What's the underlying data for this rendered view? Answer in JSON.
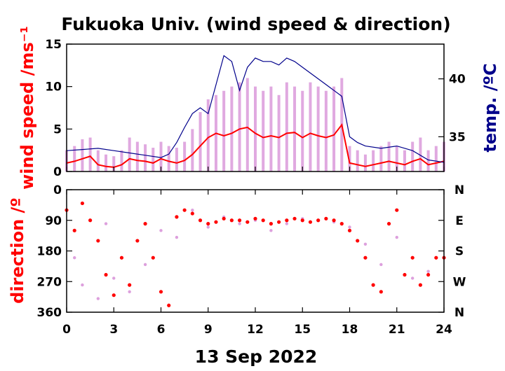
{
  "chart_data": [
    {
      "type": "line",
      "title": "Fukuoka Univ. (wind speed & direction)",
      "xlabel": "13 Sep 2022",
      "ylabel": "wind speed /ms⁻¹",
      "ylabel_right": "temp. /ºC",
      "xlim": [
        0,
        24
      ],
      "ylim": [
        0,
        15
      ],
      "ylim_right": [
        32,
        43
      ],
      "x_ticks": [
        "0",
        "3",
        "6",
        "9",
        "12",
        "15",
        "18",
        "21",
        "24"
      ],
      "y_ticks": [
        "0",
        "5",
        "10",
        "15"
      ],
      "y_ticks_right": [
        "35",
        "40"
      ],
      "colors": {
        "mean_speed": "#ff0000",
        "gust_speed": "#dda0dd",
        "temperature": "#00008b"
      },
      "series": [
        {
          "x": [
            0,
            0.5,
            1,
            1.5,
            2,
            2.5,
            3,
            3.5,
            4,
            4.5,
            5,
            5.5,
            6,
            6.5,
            7,
            7.5,
            8,
            8.5,
            9,
            9.5,
            10,
            10.5,
            11,
            11.5,
            12,
            12.5,
            13,
            13.5,
            14,
            14.5,
            15,
            15.5,
            16,
            16.5,
            17,
            17.5,
            18,
            18.5,
            19,
            19.5,
            20,
            20.5,
            21,
            21.5,
            22,
            22.5,
            23,
            23.5,
            24
          ],
          "values": [
            1.0,
            1.2,
            1.5,
            1.8,
            0.8,
            0.6,
            0.5,
            0.8,
            1.5,
            1.3,
            1.2,
            1.0,
            1.5,
            1.2,
            1.0,
            1.3,
            2.0,
            3.0,
            4.0,
            4.5,
            4.2,
            4.5,
            5.0,
            5.2,
            4.5,
            4.0,
            4.2,
            4.0,
            4.5,
            4.6,
            4.0,
            4.5,
            4.2,
            4.0,
            4.3,
            5.5,
            1.0,
            0.8,
            0.6,
            0.8,
            1.0,
            1.2,
            1.0,
            0.8,
            1.2,
            1.5,
            0.8,
            1.0,
            1.2
          ]
        },
        {
          "x": [
            0,
            0.5,
            1,
            1.5,
            2,
            2.5,
            3,
            3.5,
            4,
            4.5,
            5,
            5.5,
            6,
            6.5,
            7,
            7.5,
            8,
            8.5,
            9,
            9.5,
            10,
            10.5,
            11,
            11.5,
            12,
            12.5,
            13,
            13.5,
            14,
            14.5,
            15,
            15.5,
            16,
            16.5,
            17,
            17.5,
            18,
            18.5,
            19,
            19.5,
            20,
            20.5,
            21,
            21.5,
            22,
            22.5,
            23,
            23.5,
            24
          ],
          "values": [
            2.5,
            3.0,
            3.8,
            4.0,
            2.5,
            2.0,
            1.8,
            2.5,
            4.0,
            3.5,
            3.2,
            2.8,
            3.5,
            3.0,
            2.8,
            3.5,
            5.0,
            7.0,
            8.5,
            9.0,
            9.5,
            10.0,
            10.5,
            11.0,
            10.0,
            9.5,
            10.0,
            9.0,
            10.5,
            10.0,
            9.5,
            10.5,
            10.0,
            9.5,
            10.0,
            11.0,
            3.0,
            2.5,
            2.0,
            2.5,
            3.0,
            3.5,
            3.0,
            2.5,
            3.5,
            4.0,
            2.5,
            3.0,
            3.5
          ]
        },
        {
          "axis": "right",
          "x": [
            0,
            1,
            2,
            3,
            4,
            5,
            6,
            6.5,
            7,
            7.5,
            8,
            8.5,
            9,
            9.5,
            10,
            10.5,
            11,
            11.5,
            12,
            12.5,
            13,
            13.5,
            14,
            14.5,
            15,
            15.5,
            16,
            16.5,
            17,
            17.5,
            18,
            18.5,
            19,
            20,
            21,
            22,
            23,
            24
          ],
          "values": [
            33.8,
            33.9,
            34.0,
            33.8,
            33.6,
            33.4,
            33.2,
            33.5,
            34.5,
            35.8,
            37.0,
            37.5,
            37.0,
            39.5,
            42.0,
            41.5,
            39.0,
            41.0,
            41.8,
            41.5,
            41.5,
            41.2,
            41.8,
            41.5,
            41.0,
            40.5,
            40.0,
            39.5,
            39.0,
            38.5,
            35.0,
            34.5,
            34.2,
            34.0,
            34.2,
            33.8,
            33.0,
            32.8
          ]
        }
      ]
    },
    {
      "type": "scatter",
      "xlabel": "13 Sep 2022",
      "ylabel": "direction /º",
      "xlim": [
        0,
        24
      ],
      "ylim": [
        360,
        0
      ],
      "x_ticks": [
        "0",
        "3",
        "6",
        "9",
        "12",
        "15",
        "18",
        "21",
        "24"
      ],
      "y_ticks": [
        "0",
        "90",
        "180",
        "270",
        "360"
      ],
      "y_ticks_right": [
        "N",
        "E",
        "S",
        "W",
        "N"
      ],
      "colors": {
        "mean_direction": "#ff0000",
        "gust_direction": "#dda0dd"
      },
      "series": [
        {
          "x": [
            0,
            0.5,
            1,
            1.5,
            2,
            2.5,
            3,
            3.5,
            4,
            4.5,
            5,
            5.5,
            6,
            6.5,
            7,
            7.5,
            8,
            8.5,
            9,
            9.5,
            10,
            10.5,
            11,
            11.5,
            12,
            12.5,
            13,
            13.5,
            14,
            14.5,
            15,
            15.5,
            16,
            16.5,
            17,
            17.5,
            18,
            18.5,
            19,
            19.5,
            20,
            20.5,
            21,
            21.5,
            22,
            22.5,
            23,
            23.5,
            24
          ],
          "values": [
            60,
            120,
            40,
            90,
            150,
            250,
            310,
            200,
            280,
            150,
            100,
            200,
            300,
            340,
            80,
            60,
            70,
            90,
            100,
            95,
            85,
            90,
            90,
            95,
            85,
            90,
            100,
            95,
            90,
            85,
            90,
            95,
            90,
            85,
            90,
            100,
            120,
            150,
            200,
            280,
            300,
            100,
            60,
            250,
            200,
            280,
            250,
            200,
            200
          ]
        },
        {
          "x": [
            0.5,
            1,
            2,
            2.5,
            3,
            4,
            5,
            6,
            7,
            8,
            9,
            10,
            11,
            12,
            13,
            14,
            15,
            16,
            17,
            18,
            19,
            20,
            21,
            22,
            23
          ],
          "values": [
            200,
            280,
            320,
            100,
            260,
            300,
            220,
            120,
            140,
            60,
            110,
            80,
            100,
            90,
            120,
            100,
            85,
            90,
            95,
            110,
            160,
            220,
            140,
            260,
            240
          ]
        }
      ]
    }
  ]
}
